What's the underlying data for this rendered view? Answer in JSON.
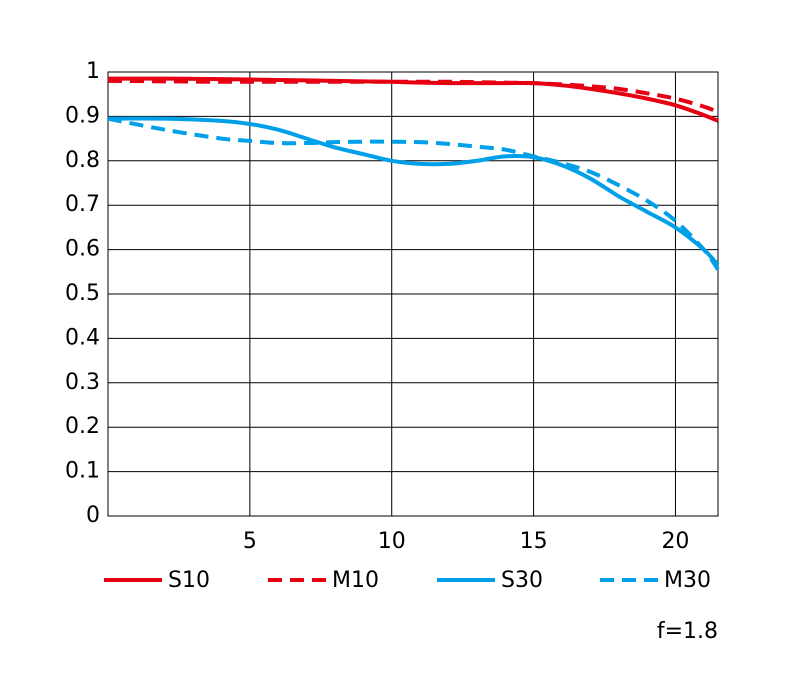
{
  "chart_data": {
    "type": "line",
    "x": [
      0,
      2,
      4,
      5,
      6,
      7,
      8,
      9,
      10,
      11,
      12,
      13,
      14,
      15,
      16,
      17,
      18,
      19,
      20,
      21,
      21.5
    ],
    "series": [
      {
        "name": "S10",
        "color": "#e60012",
        "style": "solid",
        "values": [
          0.985,
          0.985,
          0.984,
          0.983,
          0.982,
          0.981,
          0.98,
          0.979,
          0.978,
          0.976,
          0.975,
          0.975,
          0.975,
          0.975,
          0.97,
          0.962,
          0.952,
          0.94,
          0.925,
          0.903,
          0.89
        ]
      },
      {
        "name": "M10",
        "color": "#e60012",
        "style": "dashed",
        "values": [
          0.98,
          0.979,
          0.978,
          0.978,
          0.978,
          0.978,
          0.978,
          0.978,
          0.978,
          0.978,
          0.978,
          0.977,
          0.976,
          0.975,
          0.972,
          0.968,
          0.962,
          0.952,
          0.94,
          0.922,
          0.91
        ]
      },
      {
        "name": "S30",
        "color": "#00a0e9",
        "style": "solid",
        "values": [
          0.895,
          0.895,
          0.89,
          0.883,
          0.87,
          0.85,
          0.83,
          0.815,
          0.8,
          0.793,
          0.793,
          0.8,
          0.81,
          0.808,
          0.79,
          0.76,
          0.72,
          0.685,
          0.65,
          0.6,
          0.565
        ]
      },
      {
        "name": "M30",
        "color": "#00a0e9",
        "style": "dashed",
        "values": [
          0.895,
          0.87,
          0.85,
          0.845,
          0.84,
          0.84,
          0.842,
          0.843,
          0.843,
          0.842,
          0.838,
          0.832,
          0.825,
          0.81,
          0.795,
          0.775,
          0.745,
          0.71,
          0.665,
          0.6,
          0.555
        ]
      }
    ],
    "xlim": [
      0,
      21.5
    ],
    "ylim": [
      0,
      1
    ],
    "xticks": [
      5,
      10,
      15,
      20
    ],
    "yticks": [
      0,
      0.1,
      0.2,
      0.3,
      0.4,
      0.5,
      0.6,
      0.7,
      0.8,
      0.9,
      1
    ],
    "grid": true,
    "annotation": "f=1.8"
  }
}
